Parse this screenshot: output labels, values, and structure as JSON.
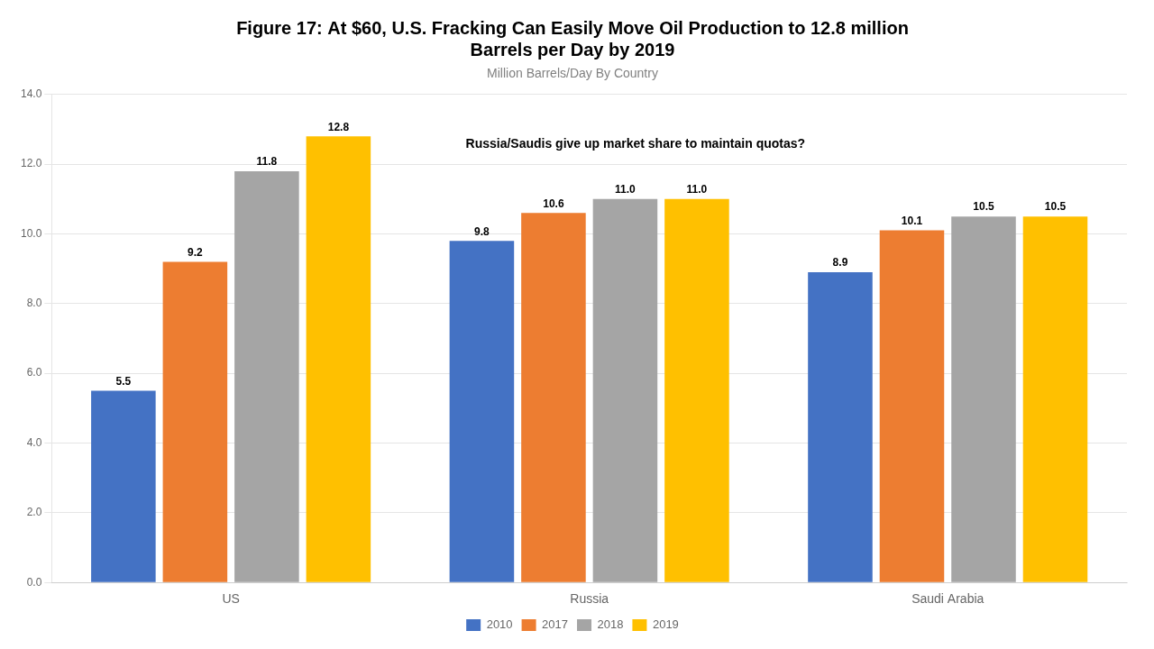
{
  "chart_data": {
    "type": "bar",
    "title": [
      "Figure 17: At $60, U.S. Fracking Can Easily Move Oil Production to 12.8 million",
      "Barrels per Day by 2019"
    ],
    "subtitle": "Million Barrels/Day By Country",
    "annotation": "Russia/Saudis give up market share to maintain quotas?",
    "categories": [
      "US",
      "Russia",
      "Saudi Arabia"
    ],
    "series": [
      {
        "name": "2010",
        "color": "#4472C4",
        "values": [
          5.5,
          9.8,
          8.9
        ],
        "value_labels": [
          "5.5",
          "9.8",
          "8.9"
        ]
      },
      {
        "name": "2017",
        "color": "#ED7D31",
        "values": [
          9.2,
          10.6,
          10.1
        ],
        "value_labels": [
          "9.2",
          "10.6",
          "10.1"
        ]
      },
      {
        "name": "2018",
        "color": "#A5A5A5",
        "values": [
          11.8,
          11.0,
          10.5
        ],
        "value_labels": [
          "11.8",
          "11.0",
          "10.5"
        ]
      },
      {
        "name": "2019",
        "color": "#FFC000",
        "values": [
          12.8,
          11.0,
          10.5
        ],
        "value_labels": [
          "12.8",
          "11.0",
          "10.5"
        ]
      }
    ],
    "ylim": [
      0,
      14.0
    ],
    "yticks": [
      {
        "value": 0,
        "label": "0.0"
      },
      {
        "value": 2,
        "label": "2.0"
      },
      {
        "value": 4,
        "label": "4.0"
      },
      {
        "value": 6,
        "label": "6.0"
      },
      {
        "value": 8,
        "label": "8.0"
      },
      {
        "value": 10,
        "label": "10.0"
      },
      {
        "value": 12,
        "label": "12.0"
      },
      {
        "value": 14,
        "label": "14.0"
      }
    ],
    "grid": true,
    "legend": "bottom",
    "data_labels": true
  }
}
